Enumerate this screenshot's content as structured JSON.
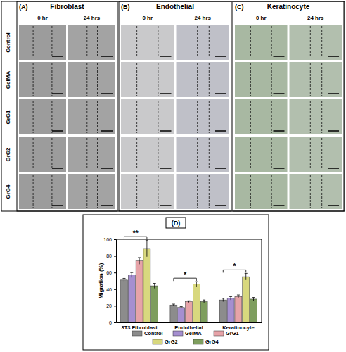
{
  "panels": {
    "columns": [
      {
        "label": "(A)",
        "title": "Fibroblast"
      },
      {
        "label": "(B)",
        "title": "Endothelial"
      },
      {
        "label": "(C)",
        "title": "Keratinocyte"
      }
    ],
    "times": [
      "0 hr",
      "24 hrs"
    ],
    "rows": [
      "Control",
      "GelMA",
      "GrG1",
      "GrG2",
      "GrG4"
    ]
  },
  "chart_data": {
    "type": "bar",
    "panel_label": "(D)",
    "y_label": "Migration (%)",
    "categories": [
      "3T3 Fibroblast",
      "Endothelial",
      "Keratinocyte"
    ],
    "series": [
      {
        "name": "Control",
        "color": "#8c8c8c",
        "values": [
          51,
          21,
          27
        ],
        "errors": [
          2,
          1,
          2
        ]
      },
      {
        "name": "GelMA",
        "color": "#a58fd0",
        "values": [
          57,
          18,
          29
        ],
        "errors": [
          3,
          1,
          2
        ]
      },
      {
        "name": "GrG1",
        "color": "#e6a3a8",
        "values": [
          74,
          25,
          31
        ],
        "errors": [
          4,
          1,
          2
        ]
      },
      {
        "name": "GrG2",
        "color": "#d8d87e",
        "values": [
          89,
          46,
          55
        ],
        "errors": [
          10,
          3,
          4
        ]
      },
      {
        "name": "GrG4",
        "color": "#7e9e5e",
        "values": [
          44,
          25,
          28
        ],
        "errors": [
          3,
          2,
          2
        ]
      }
    ],
    "ylim": [
      0,
      100
    ],
    "yticks": [
      0,
      20,
      40,
      60,
      80,
      100
    ],
    "legend": "bottom",
    "annotations": [
      {
        "text": "**",
        "category": 0,
        "from": "Control",
        "to": "GrG2"
      },
      {
        "text": "*",
        "category": 1,
        "from": "Control",
        "to": "GrG2"
      },
      {
        "text": "*",
        "category": 2,
        "from": "Control",
        "to": "GrG2"
      }
    ]
  }
}
